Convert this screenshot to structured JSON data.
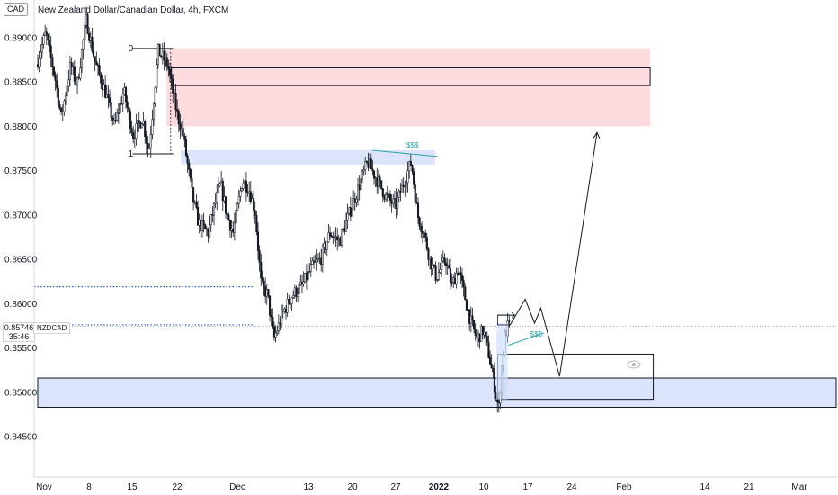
{
  "header": {
    "currency_badge": "CAD",
    "title": "New Zealand Dollar/Canadian Dollar, 4h, FXCM"
  },
  "last_price": {
    "value": "0.85746",
    "countdown": "35:46",
    "symbol": "NZDCAD"
  },
  "colors": {
    "candle": "#131722",
    "supply_zone": "#fddcdf",
    "demand_zone": "#dbe4fb",
    "liquidity_label": "#2fa3a8",
    "dotted_level": "#2a5bd7"
  },
  "chart_data": {
    "type": "candlestick",
    "instrument": "NZDCAD",
    "timeframe": "4h",
    "y_axis": {
      "range": [
        0.8425,
        0.8935
      ],
      "ticks": [
        "0.89000",
        "0.88500",
        "0.88000",
        "0.87500",
        "0.87000",
        "0.86500",
        "0.86000",
        "0.85500",
        "0.85000",
        "0.84500"
      ]
    },
    "x_axis": {
      "ticks": [
        "Nov",
        "8",
        "15",
        "22",
        "Dec",
        "13",
        "20",
        "27",
        "2022",
        "10",
        "17",
        "24",
        "Feb",
        "14",
        "21",
        "Mar"
      ]
    },
    "price_path": [
      [
        0,
        0.887
      ],
      [
        1.5,
        0.8905
      ],
      [
        3,
        0.8855
      ],
      [
        4,
        0.881
      ],
      [
        5.5,
        0.887
      ],
      [
        6.5,
        0.8845
      ],
      [
        8,
        0.892
      ],
      [
        9.5,
        0.887
      ],
      [
        11,
        0.884
      ],
      [
        12.5,
        0.88
      ],
      [
        14,
        0.884
      ],
      [
        15.5,
        0.879
      ],
      [
        17,
        0.881
      ],
      [
        18,
        0.877
      ],
      [
        19.5,
        0.8885
      ],
      [
        21,
        0.887
      ],
      [
        22.5,
        0.8815
      ],
      [
        23.5,
        0.879
      ],
      [
        25,
        0.872
      ],
      [
        26,
        0.869
      ],
      [
        27.5,
        0.868
      ],
      [
        28.5,
        0.871
      ],
      [
        29.5,
        0.8735
      ],
      [
        30.5,
        0.87
      ],
      [
        31.5,
        0.868
      ],
      [
        33,
        0.874
      ],
      [
        34,
        0.873
      ],
      [
        35,
        0.8705
      ],
      [
        36,
        0.862
      ],
      [
        37,
        0.861
      ],
      [
        38,
        0.856
      ],
      [
        39.5,
        0.859
      ],
      [
        41,
        0.861
      ],
      [
        42.5,
        0.862
      ],
      [
        44,
        0.864
      ],
      [
        45.5,
        0.865
      ],
      [
        47,
        0.868
      ],
      [
        48.5,
        0.867
      ],
      [
        50,
        0.87
      ],
      [
        51.5,
        0.873
      ],
      [
        53,
        0.876
      ],
      [
        54.5,
        0.874
      ],
      [
        56,
        0.872
      ],
      [
        57.5,
        0.871
      ],
      [
        59,
        0.874
      ],
      [
        60,
        0.876
      ],
      [
        61,
        0.87
      ],
      [
        62,
        0.868
      ],
      [
        63,
        0.865
      ],
      [
        64,
        0.863
      ],
      [
        65.5,
        0.865
      ],
      [
        66.5,
        0.862
      ],
      [
        67.5,
        0.864
      ],
      [
        68.5,
        0.861
      ],
      [
        69.5,
        0.858
      ],
      [
        70.5,
        0.856
      ],
      [
        71.5,
        0.857
      ],
      [
        72.5,
        0.854
      ],
      [
        73.5,
        0.85
      ],
      [
        74,
        0.848
      ],
      [
        74.5,
        0.853
      ],
      [
        75,
        0.8565
      ],
      [
        75.5,
        0.8575
      ]
    ],
    "zones": [
      {
        "kind": "supply",
        "price_top": 0.8888,
        "price_bottom": 0.88,
        "x_start": 20.6,
        "x_end": 98.0
      },
      {
        "kind": "supply_box",
        "price_top": 0.8866,
        "price_bottom": 0.8846,
        "x_start": 21.4,
        "x_end": 98.0
      },
      {
        "kind": "demand",
        "price_top": 0.8773,
        "price_bottom": 0.8757,
        "x_start": 22.9,
        "x_end": 63.6
      },
      {
        "kind": "demand",
        "price_top": 0.8516,
        "price_bottom": 0.8483,
        "x_start": 0.0,
        "x_end": 131.0
      },
      {
        "kind": "demand_box",
        "price_top": 0.8543,
        "price_bottom": 0.8492,
        "x_start": 73.6,
        "x_end": 98.5
      }
    ],
    "fib_levels": [
      {
        "label": "0",
        "price": 0.8888
      },
      {
        "label": "1",
        "price": 0.8769
      }
    ],
    "liquidity_labels": [
      {
        "text": "$$$",
        "price": 0.8776,
        "x": 59.0
      },
      {
        "text": "$$$",
        "price": 0.8563,
        "x": 78.8
      }
    ],
    "dotted_levels": [
      0.8619,
      0.8576
    ],
    "projection_path": [
      [
        75.5,
        0.8575
      ],
      [
        78.0,
        0.8605
      ],
      [
        79.5,
        0.8578
      ],
      [
        80.5,
        0.8595
      ],
      [
        83.5,
        0.8518
      ],
      [
        89.5,
        0.8793
      ]
    ]
  }
}
